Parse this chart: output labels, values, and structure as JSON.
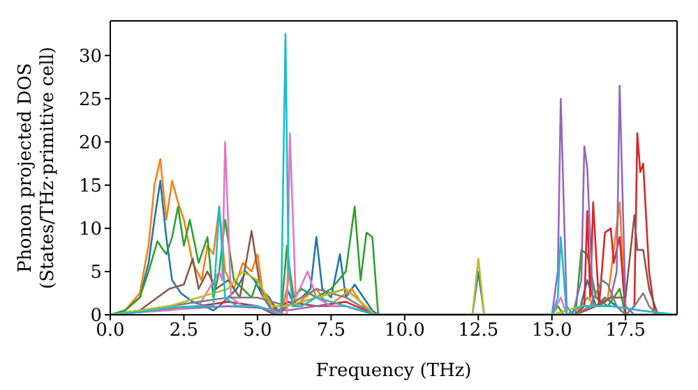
{
  "chart_data": {
    "type": "line",
    "xlabel": "Frequency (THz)",
    "ylabel": "Phonon projected DOS\n(States/THz·primitive cell)",
    "xlim": [
      0,
      19.25
    ],
    "ylim": [
      0,
      34
    ],
    "xticks": [
      {
        "value": 0,
        "label": "0.0"
      },
      {
        "value": 2.5,
        "label": "2.5"
      },
      {
        "value": 5,
        "label": "5.0"
      },
      {
        "value": 7.5,
        "label": "7.5"
      },
      {
        "value": 10,
        "label": "10.0"
      },
      {
        "value": 12.5,
        "label": "12.5"
      },
      {
        "value": 15,
        "label": "15.0"
      },
      {
        "value": 17.5,
        "label": "17.5"
      }
    ],
    "yticks": [
      0,
      5,
      10,
      15,
      20,
      25,
      30
    ],
    "marker": "none",
    "line_style": "solid",
    "series": [
      {
        "color": "#1f77b4",
        "x": [
          0,
          0.5,
          1,
          1.3,
          1.5,
          1.7,
          1.9,
          2.1,
          2.4,
          2.8,
          3.2,
          3.5,
          3.7,
          4,
          4.3,
          4.6,
          4.9,
          5.2,
          5.5,
          5.8,
          6,
          6.2,
          6.5,
          6.8,
          7,
          7.2,
          7.5,
          7.8,
          8,
          8.3,
          8.6,
          8.9,
          9.1,
          12.3,
          12.5,
          12.7,
          15.9,
          16.2,
          16.5,
          16.8,
          17.2,
          17.5,
          19.25
        ],
        "values": [
          0,
          0.5,
          2,
          6,
          11,
          15.5,
          9,
          4,
          2.5,
          1.5,
          1,
          0.5,
          1,
          2,
          3,
          5,
          4,
          2,
          0.5,
          0,
          3,
          1.5,
          2,
          3,
          9,
          3,
          2,
          7,
          2,
          3.5,
          2,
          0.5,
          0,
          0,
          5,
          0,
          0,
          4,
          1,
          2,
          1,
          0,
          0
        ]
      },
      {
        "color": "#ff7f0e",
        "x": [
          0,
          0.5,
          1,
          1.3,
          1.5,
          1.7,
          1.9,
          2.1,
          2.3,
          2.5,
          2.8,
          3.1,
          3.3,
          3.5,
          3.7,
          3.9,
          4.2,
          4.5,
          4.8,
          5,
          5.2,
          5.5,
          5.8,
          6,
          6.1,
          6.3,
          6.6,
          7,
          7.4,
          7.8,
          8.2,
          8.6,
          9,
          15.8,
          16.2,
          16.5,
          16.9,
          17.3,
          17.5,
          19.25
        ],
        "values": [
          0,
          0.5,
          2.5,
          8,
          15,
          18,
          11,
          15.5,
          13,
          11,
          6,
          4,
          8,
          7,
          12.5,
          5,
          3,
          6,
          5,
          7,
          2,
          1,
          0,
          3,
          5,
          1,
          2,
          3,
          1,
          2,
          3,
          1,
          0,
          0,
          2,
          1,
          2,
          13,
          0,
          0
        ]
      },
      {
        "color": "#2ca02c",
        "x": [
          0,
          0.5,
          1,
          1.3,
          1.6,
          1.9,
          2.1,
          2.3,
          2.5,
          2.7,
          3,
          3.3,
          3.5,
          3.7,
          3.9,
          4.2,
          4.5,
          4.8,
          5,
          5.3,
          5.6,
          5.8,
          6,
          6.2,
          6.5,
          7,
          7.5,
          8,
          8.3,
          8.5,
          8.7,
          8.9,
          9.1,
          15,
          15.2,
          15.4,
          15.8,
          16,
          16.2,
          16.5,
          16.9,
          17.3,
          17.5,
          19.25
        ],
        "values": [
          0,
          0.5,
          2,
          5,
          8.5,
          7,
          9,
          12.5,
          8,
          11,
          6,
          9,
          2,
          5,
          11,
          4,
          3,
          2,
          4,
          2,
          1,
          0,
          8,
          2,
          3,
          2,
          3,
          5,
          12.5,
          4,
          9.5,
          9,
          0,
          0,
          1,
          0,
          0,
          7.5,
          7,
          2,
          1,
          3,
          0,
          0
        ]
      },
      {
        "color": "#d62728",
        "x": [
          2,
          3,
          4,
          5,
          5.6,
          6,
          7,
          8,
          9,
          15.8,
          16.1,
          16.2,
          16.3,
          16.4,
          16.6,
          16.8,
          17,
          17.1,
          17.3,
          17.5,
          17.8,
          17.9,
          18,
          18.1,
          18.3,
          18.5,
          19.25
        ],
        "values": [
          0.8,
          1,
          1.5,
          1,
          0,
          1.5,
          1,
          1.5,
          0,
          0,
          1,
          12,
          2,
          13,
          1,
          9.5,
          10,
          6,
          9,
          0,
          1,
          21,
          16.5,
          17.5,
          5,
          0,
          0
        ]
      },
      {
        "color": "#9467bd",
        "x": [
          0,
          1,
          2,
          3,
          4,
          5,
          6,
          7,
          8,
          9,
          15,
          15.2,
          15.3,
          15.5,
          15.7,
          16,
          16.1,
          16.2,
          16.4,
          16.6,
          17,
          17.2,
          17.3,
          17.5,
          17.8,
          19.25
        ],
        "values": [
          0,
          0.3,
          0.6,
          0.8,
          1,
          0.8,
          0.5,
          1,
          1,
          0,
          0,
          5,
          25,
          1,
          0,
          4,
          19.5,
          17,
          1,
          1,
          2,
          5,
          26.5,
          1,
          0,
          0
        ]
      },
      {
        "color": "#8c564b",
        "x": [
          0,
          1,
          2,
          2.5,
          2.8,
          3,
          3.3,
          3.6,
          4,
          4.4,
          4.8,
          5.1,
          5.4,
          5.7,
          6,
          7,
          8,
          9,
          15.8,
          16.5,
          17,
          17.5,
          17.8,
          17.9,
          18.1,
          18.3,
          18.6,
          19.25
        ],
        "values": [
          0,
          0.5,
          3,
          3.5,
          6.5,
          3,
          5,
          3,
          4,
          2,
          9.7,
          3,
          2,
          0,
          1,
          2,
          3,
          0,
          0,
          1,
          2,
          2,
          11.5,
          7.5,
          7.5,
          3,
          0,
          0
        ]
      },
      {
        "color": "#e377c2",
        "x": [
          0,
          1,
          2,
          3,
          3.7,
          3.8,
          3.9,
          4.1,
          4.5,
          5,
          5.5,
          6,
          6.1,
          6.3,
          6.7,
          7,
          7.5,
          8,
          9,
          15,
          15.3,
          15.5,
          16,
          17,
          18,
          19.25
        ],
        "values": [
          0,
          0.3,
          0.5,
          1,
          5,
          4,
          20,
          2,
          1,
          1,
          0.5,
          0,
          21,
          2,
          5,
          2,
          1,
          1,
          0,
          0,
          2,
          0,
          1,
          1,
          0.5,
          0
        ]
      },
      {
        "color": "#7f7f7f",
        "x": [
          0,
          1,
          2,
          3,
          4,
          5,
          6,
          7,
          8,
          9,
          15.8,
          16.3,
          16.7,
          16.9,
          17.2,
          17.5,
          17.8,
          18.1,
          18.3,
          18.6,
          19.25
        ],
        "values": [
          0,
          0.5,
          1,
          1.5,
          2,
          2,
          1,
          3,
          2,
          0,
          0,
          1,
          4,
          3.5,
          1,
          0,
          1,
          2.5,
          1,
          0,
          0
        ]
      },
      {
        "color": "#bcbd22",
        "x": [
          0,
          1,
          2,
          3,
          4,
          4.5,
          5,
          5.5,
          6,
          7,
          8,
          9,
          12.3,
          12.5,
          12.7,
          15,
          16,
          17
        ],
        "values": [
          0,
          0.5,
          1,
          2,
          3,
          5,
          4,
          1,
          1,
          2,
          3,
          0,
          0,
          6.5,
          0,
          0,
          1,
          1
        ]
      },
      {
        "color": "#17becf",
        "x": [
          0,
          1,
          2,
          3,
          3.5,
          3.7,
          3.9,
          4.3,
          5,
          5.8,
          5.95,
          6.05,
          6.2,
          6.5,
          7,
          8,
          9,
          15,
          15.2,
          15.3,
          15.5,
          16,
          17,
          18,
          19.25
        ],
        "values": [
          0,
          0.3,
          0.8,
          1,
          1,
          12.5,
          2,
          1,
          1,
          0,
          32.5,
          6,
          1,
          1,
          2,
          1,
          0,
          0,
          2,
          9,
          0,
          1,
          1,
          0.5,
          0
        ]
      }
    ]
  }
}
